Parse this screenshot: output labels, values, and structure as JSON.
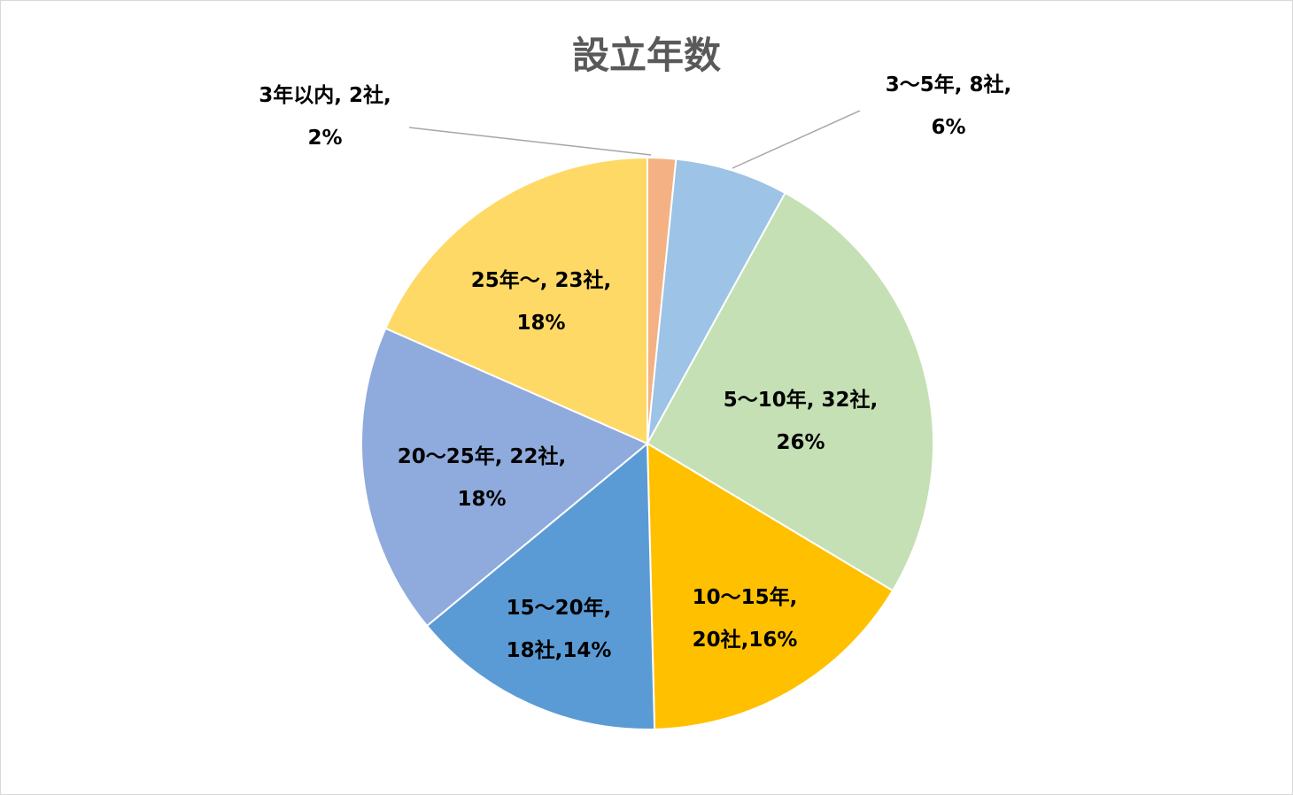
{
  "chart_data": {
    "type": "pie",
    "title": "設立年数",
    "slices": [
      {
        "category": "3年以内",
        "value": 2,
        "percent": "2%",
        "color": "#F4B183",
        "label_lines": [
          "3年以内, 2社,",
          "2%"
        ]
      },
      {
        "category": "3～5年",
        "value": 8,
        "percent": "6%",
        "color": "#9DC3E6",
        "label_lines": [
          "3～5年, 8社,",
          "6%"
        ]
      },
      {
        "category": "5～10年",
        "value": 32,
        "percent": "26%",
        "color": "#C5E0B4",
        "label_lines": [
          "5～10年, 32社,",
          "26%"
        ]
      },
      {
        "category": "10～15年",
        "value": 20,
        "percent": "16%",
        "color": "#FFC000",
        "label_lines": [
          "10～15年,",
          "20社,16%"
        ]
      },
      {
        "category": "15～20年",
        "value": 18,
        "percent": "14%",
        "color": "#5B9BD5",
        "label_lines": [
          "15～20年,",
          "18社,14%"
        ]
      },
      {
        "category": "20～25年",
        "value": 22,
        "percent": "18%",
        "color": "#8FAADC",
        "label_lines": [
          "20～25年, 22社,",
          "18%"
        ]
      },
      {
        "category": "25年～",
        "value": 23,
        "percent": "18%",
        "color": "#FFD966",
        "label_lines": [
          "25年～, 23社,",
          "18%"
        ]
      }
    ]
  }
}
